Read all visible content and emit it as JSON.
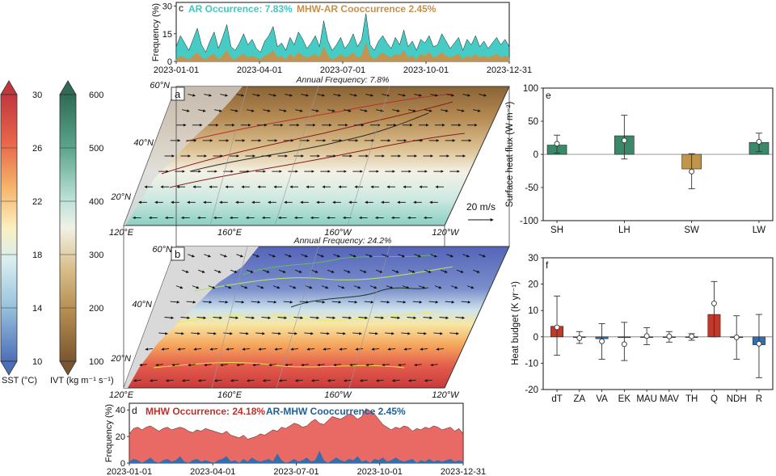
{
  "colors": {
    "ar": "#3cc9c2",
    "cooc_ar": "#c9904a",
    "mhw": "#e8625c",
    "cooc_mhw": "#2a6fb0",
    "title_mhw": "#c0302a",
    "title_armhw": "#1d5f99",
    "bar_pos": "#3a8a6a",
    "bar_neg": "#c0954d",
    "budget_red": "#c0392b",
    "budget_blue": "#2e6fb5"
  },
  "colorbars": {
    "sst": {
      "label": "SST (°C)",
      "ticks": [
        "30",
        "26",
        "22",
        "18",
        "14",
        "10"
      ]
    },
    "ivt": {
      "label": "IVT (kg m⁻¹ s⁻¹)",
      "ticks": [
        "600",
        "500",
        "400",
        "300",
        "200",
        "100"
      ]
    }
  },
  "maps": {
    "a": {
      "letter": "a",
      "annual": "Annual Frequency: 7.8%"
    },
    "b": {
      "letter": "b",
      "annual": "Annual Frequency: 24.2%"
    },
    "lat_labels": [
      "60°N",
      "40°N",
      "20°N"
    ],
    "lon_labels": [
      "120°E",
      "160°E",
      "160°W",
      "120°W"
    ],
    "wind_ref": "20 m/s"
  },
  "chart_data": [
    {
      "panel": "c",
      "type": "area",
      "title_parts": [
        "AR Occurrence: 7.83%",
        "MHW-AR Cooccurrence 2.45%"
      ],
      "ylabel": "Frequency (%)",
      "ylim": [
        0,
        32
      ],
      "yticks": [
        "0",
        "15",
        "30"
      ],
      "xticks": [
        "2023-01-01",
        "2023-04-01",
        "2023-07-01",
        "2023-10-01",
        "2023-12-31"
      ],
      "series": [
        {
          "name": "AR Occurrence",
          "values": [
            8,
            14,
            10,
            6,
            12,
            18,
            9,
            5,
            11,
            16,
            7,
            13,
            20,
            8,
            6,
            10,
            15,
            9,
            12,
            7,
            5,
            11,
            14,
            19,
            8,
            10,
            6,
            13,
            9,
            16,
            12,
            7,
            10,
            14,
            8,
            22,
            11,
            6,
            9,
            13,
            7,
            10,
            15,
            8,
            12,
            26,
            9,
            6,
            11,
            14,
            10,
            7,
            13,
            9,
            17,
            8,
            11,
            6,
            12,
            10,
            14,
            8,
            9,
            15,
            11,
            7,
            10,
            13,
            6,
            12,
            9,
            14,
            8,
            11,
            7,
            10,
            13,
            9,
            12,
            8
          ]
        },
        {
          "name": "MHW-AR Cooccurrence",
          "values": [
            1,
            3,
            2,
            1,
            3,
            5,
            2,
            1,
            3,
            4,
            1,
            3,
            6,
            2,
            1,
            3,
            4,
            2,
            3,
            2,
            1,
            3,
            4,
            6,
            2,
            3,
            1,
            4,
            2,
            5,
            3,
            2,
            3,
            4,
            2,
            8,
            3,
            1,
            2,
            4,
            2,
            3,
            5,
            2,
            3,
            10,
            3,
            1,
            3,
            5,
            3,
            2,
            4,
            3,
            6,
            2,
            3,
            1,
            4,
            3,
            5,
            2,
            3,
            5,
            3,
            2,
            3,
            4,
            1,
            3,
            2,
            4,
            2,
            3,
            2,
            3,
            4,
            2,
            3,
            2
          ]
        }
      ]
    },
    {
      "panel": "d",
      "type": "area",
      "title_parts": [
        "MHW Occurrence: 24.18%",
        "AR-MHW Cooccurrence 2.45%"
      ],
      "ylabel": "Frequency (%)",
      "ylim": [
        0,
        45
      ],
      "yticks": [
        "0",
        "20",
        "40"
      ],
      "xticks": [
        "2023-01-01",
        "2023-04-01",
        "2023-07-01",
        "2023-10-01",
        "2023-12-31"
      ],
      "series": [
        {
          "name": "MHW Occurrence",
          "values": [
            22,
            26,
            27,
            25,
            27,
            28,
            26,
            24,
            26,
            27,
            25,
            26,
            27,
            26,
            24,
            23,
            25,
            24,
            26,
            25,
            24,
            23,
            22,
            24,
            21,
            20,
            19,
            21,
            18,
            19,
            20,
            22,
            21,
            23,
            25,
            24,
            27,
            26,
            28,
            30,
            29,
            27,
            28,
            31,
            33,
            30,
            29,
            32,
            35,
            34,
            33,
            35,
            37,
            36,
            33,
            35,
            41,
            39,
            37,
            33,
            29,
            27,
            25,
            27,
            26,
            28,
            27,
            24,
            26,
            25,
            27,
            26,
            28,
            27,
            25,
            26,
            27,
            24,
            26,
            22
          ]
        },
        {
          "name": "AR-MHW Cooccurrence",
          "values": [
            1,
            3,
            2,
            0,
            2,
            4,
            1,
            0,
            2,
            3,
            1,
            2,
            5,
            1,
            0,
            2,
            3,
            1,
            2,
            1,
            0,
            2,
            3,
            5,
            1,
            2,
            0,
            3,
            1,
            4,
            2,
            1,
            2,
            3,
            1,
            7,
            2,
            0,
            1,
            3,
            1,
            2,
            4,
            1,
            2,
            9,
            2,
            0,
            2,
            4,
            2,
            1,
            3,
            2,
            5,
            1,
            2,
            0,
            3,
            2,
            4,
            1,
            2,
            4,
            2,
            1,
            2,
            3,
            0,
            2,
            1,
            3,
            1,
            2,
            1,
            2,
            3,
            1,
            2,
            1
          ]
        }
      ]
    },
    {
      "panel": "e",
      "type": "bar",
      "ylabel": "Surface heat flux (W m⁻²)",
      "ylim": [
        -100,
        100
      ],
      "yticks": [
        "100",
        "50",
        "0",
        "-50",
        "-100"
      ],
      "categories": [
        "SH",
        "LH",
        "SW",
        "LW"
      ],
      "values": [
        14,
        28,
        -22,
        18
      ],
      "markers": [
        16,
        21,
        -26,
        19
      ],
      "error_low": [
        2,
        -7,
        -52,
        4
      ],
      "error_high": [
        29,
        59,
        1,
        32
      ]
    },
    {
      "panel": "f",
      "type": "bar",
      "ylabel": "Heat budget (K yr⁻¹)",
      "ylim": [
        -20,
        30
      ],
      "yticks": [
        "30",
        "20",
        "10",
        "0",
        "-10",
        "-20"
      ],
      "categories": [
        "dT",
        "ZA",
        "VA",
        "EK",
        "MAU",
        "MAV",
        "TH",
        "Q",
        "NDH",
        "R"
      ],
      "values": [
        4,
        0,
        -0.7,
        -0.3,
        0,
        0,
        0,
        8.5,
        -0.3,
        -3
      ],
      "markers": [
        3.6,
        -0.5,
        -1.7,
        -2.8,
        0.3,
        0.2,
        0.2,
        12.7,
        -0.2,
        -2.6
      ],
      "error_low": [
        -7,
        -2.5,
        -8.5,
        -9,
        -3,
        -2,
        -1.3,
        0,
        -8.5,
        -15.5
      ],
      "error_high": [
        15.5,
        2,
        5,
        5.5,
        3.5,
        2,
        1.2,
        21,
        8,
        8.5
      ]
    }
  ]
}
